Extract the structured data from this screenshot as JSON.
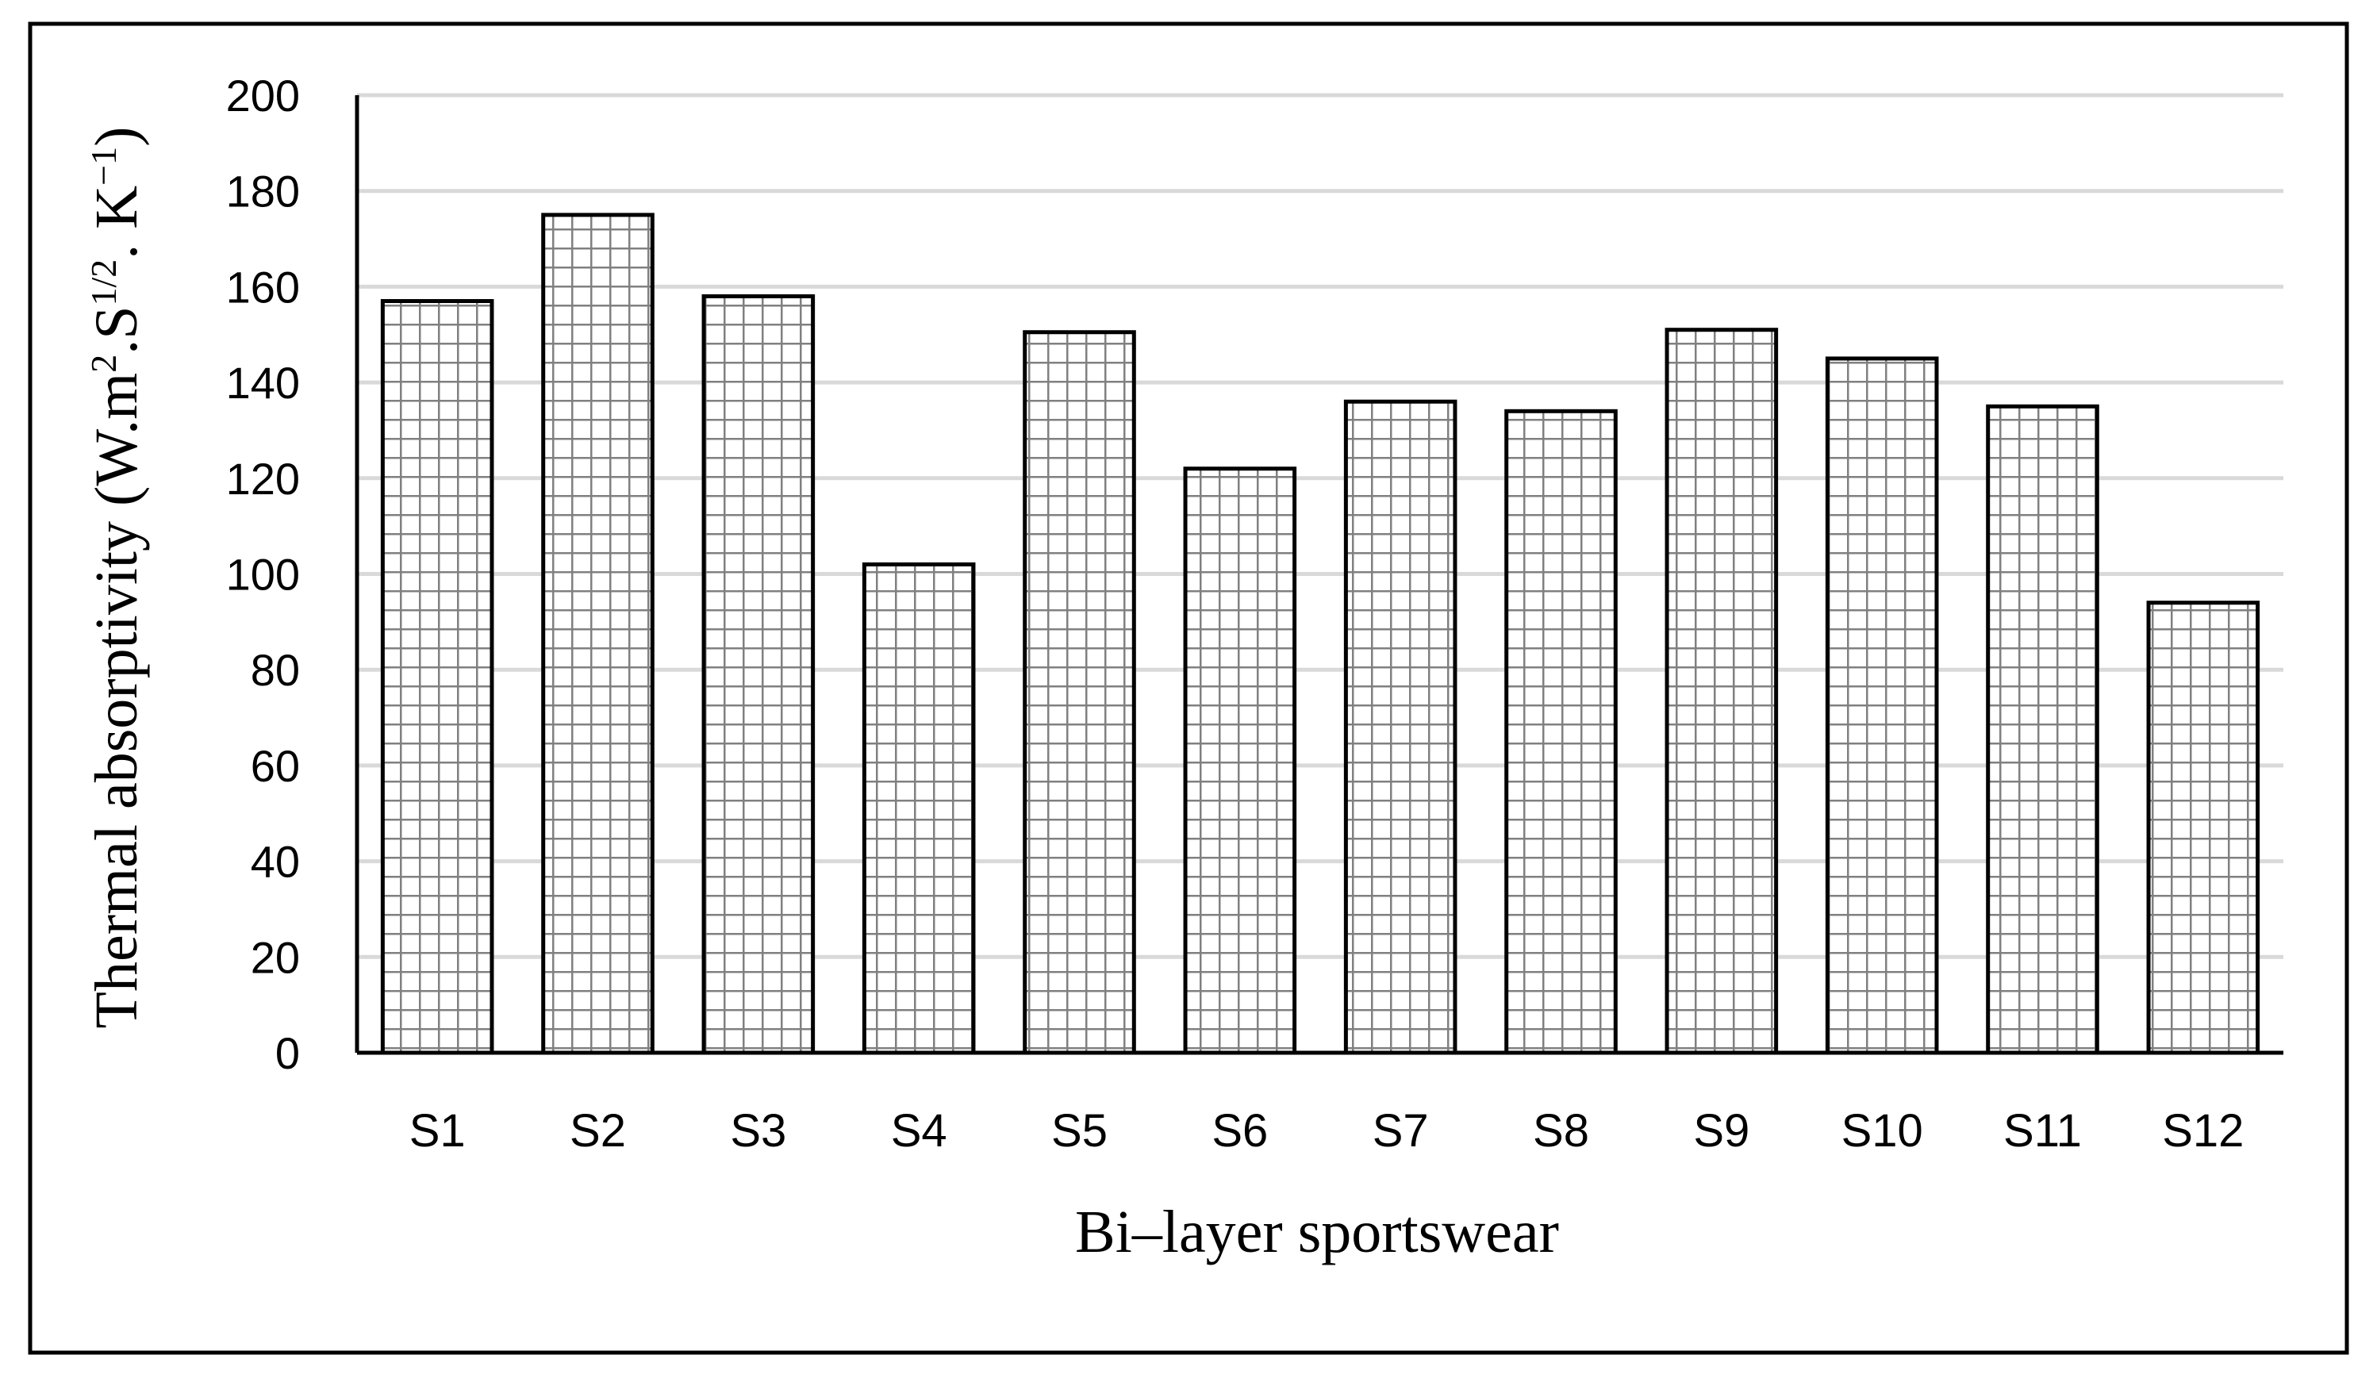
{
  "chart_data": {
    "type": "bar",
    "title": "",
    "xlabel": "Bi–layer sportswear",
    "ylabel": {
      "main": "Thermal absorptivity (W.m",
      "exp1": "2",
      "mid1": ".S",
      "exp2": "1/2",
      "mid2": ". K",
      "exp3": "−1",
      "end": ")"
    },
    "categories": [
      "S1",
      "S2",
      "S3",
      "S4",
      "S5",
      "S6",
      "S7",
      "S8",
      "S9",
      "S10",
      "S11",
      "S12"
    ],
    "values": [
      157,
      175,
      158,
      102,
      150.5,
      122,
      136,
      134,
      151,
      145,
      135,
      94
    ],
    "ylim": [
      0,
      200
    ],
    "yticks": [
      0,
      20,
      40,
      60,
      80,
      100,
      120,
      140,
      160,
      180,
      200
    ],
    "grid": true,
    "legend": "none",
    "bar_fill_pattern": "grid-hatch",
    "colors": {
      "bar_edge": "#000000",
      "hatch": "#808080",
      "gridline": "#d9d9d9",
      "frame": "#000000"
    }
  }
}
